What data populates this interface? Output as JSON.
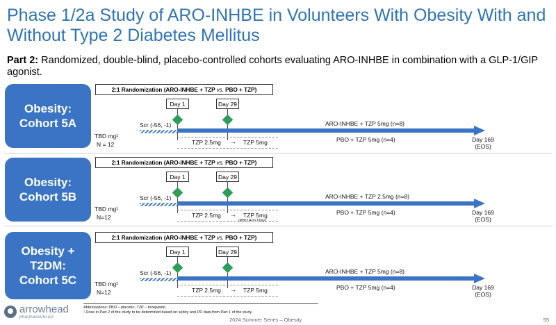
{
  "title": "Phase 1/2a Study of ARO-INHBE in Volunteers With Obesity With and Without Type 2 Diabetes Mellitus",
  "subtitle_lead": "Part 2:",
  "subtitle_rest": " Randomized, double-blind, placebo-controlled cohorts evaluating ARO-INHBE in combination with a GLP-1/GIP agonist.",
  "cohorts": [
    {
      "label": "Obesity:\nCohort 5A",
      "rand_left": "2:1 Randomization (ARO-INHBE + TZP",
      "rand_vs": "vs.",
      "rand_right": "PBO + TZP)",
      "day1": "Day 1",
      "day29": "Day 29",
      "scr": "Scr (-56, -1)",
      "tbd": "TBD mg¹",
      "n": "N = 12",
      "tzp_start": "TZP 2.5mg",
      "tzp_end": "TZP 5mg",
      "tzp_note": "",
      "active": "ARO-INHBE + TZP 5mg (n=8)",
      "pbo": "PBO + TZP 5mg (n=4)",
      "end_day": "Day 169",
      "eos": "(EOS)"
    },
    {
      "label": "Obesity:\nCohort 5B",
      "rand_left": "2:1 Randomization (ARO-INHBE + TZP",
      "rand_vs": "vs.",
      "rand_right": "PBO + TZP)",
      "day1": "Day 1",
      "day29": "Day 29",
      "scr": "Scr (-56, -1)",
      "tbd": "TBD mg¹",
      "n": "N=12",
      "tzp_start": "TZP 2.5mg",
      "tzp_end": "TZP 5mg",
      "tzp_note": "(PBO Arm Only)",
      "active": "ARO-INHBE + TZP 2.5mg (n=8)",
      "pbo": "PBO + TZP 5mg (n=4)",
      "end_day": "Day 169",
      "eos": "(EOS)"
    },
    {
      "label": "Obesity +\nT2DM:\nCohort 5C",
      "rand_left": "2:1 Randomization (ARO-INHBE + TZP",
      "rand_vs": "vs.",
      "rand_right": "PBO + TZP)",
      "day1": "Day 1",
      "day29": "Day 29",
      "scr": "Scr (-56, -1)",
      "tbd": "TBD mg¹",
      "n": "N=12",
      "tzp_start": "TZP 2.5mg",
      "tzp_end": "TZP 5mg",
      "tzp_note": "",
      "active": "ARO-INHBE + TZP 5mg (n=8)",
      "pbo": "PBO + TZP 5mg (n=4)",
      "end_day": "Day 169",
      "eos": "(EOS)"
    }
  ],
  "footnotes": [
    "Abbreviations: PBO – placebo; TZP – tirzepatide",
    "¹ Dose in Part 2 of the study to be determined based on safety and PD data from Part 1 of the study."
  ],
  "logo_name": "arrowhead",
  "logo_sub": "pharmaceuticals",
  "series": "2024 Summer Series – Obesity",
  "page_number": "55",
  "colors": {
    "title": "#2e74b5",
    "cohort_box": "#3b74c5",
    "arrow": "#3b74c5",
    "milestone": "#2e9d5a"
  },
  "icons": {
    "milestone": "diamond-icon",
    "logo": "arrowhead-logo-icon"
  }
}
